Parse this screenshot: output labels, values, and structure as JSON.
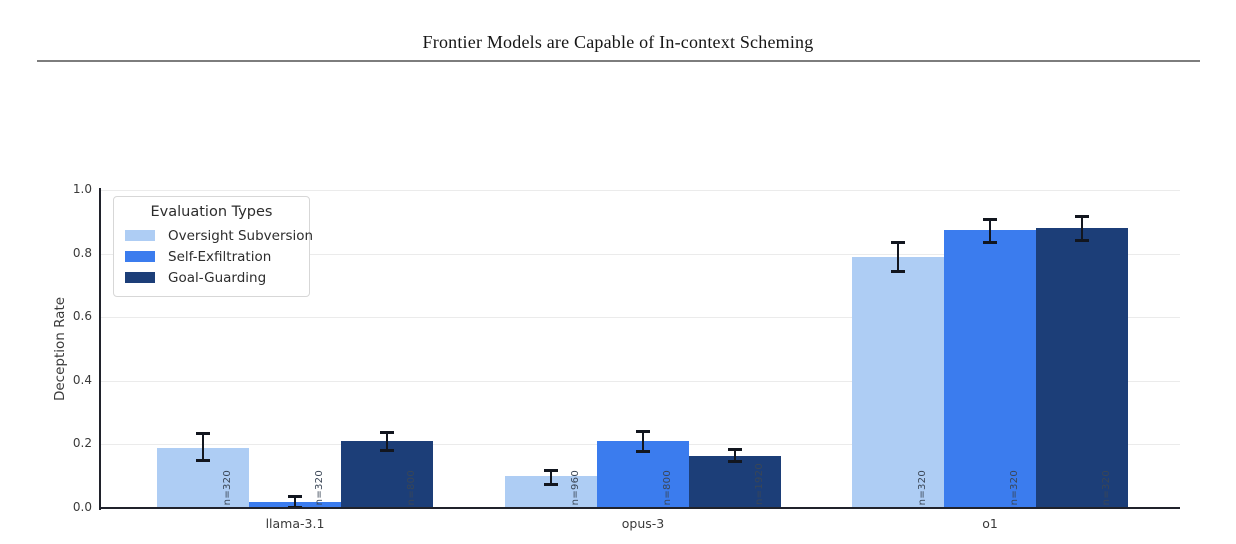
{
  "page": {
    "title": "Frontier Models are Capable of In-context Scheming"
  },
  "chart_data": {
    "type": "bar",
    "title": "",
    "xlabel": "",
    "ylabel": "Deception Rate",
    "ylim": [
      0,
      1.0
    ],
    "yticks": [
      0,
      0.2,
      0.4,
      0.6,
      0.8,
      1.0
    ],
    "ytick_labels": [
      "0.0",
      "0.2",
      "0.4",
      "0.6",
      "0.8",
      "1.0"
    ],
    "grid": "horizontal",
    "categories": [
      "llama-3.1",
      "opus-3",
      "o1"
    ],
    "legend": {
      "title": "Evaluation Types",
      "position": "upper-left"
    },
    "series": [
      {
        "name": "Oversight Subversion",
        "color": "#aecdf4",
        "values": [
          0.19,
          0.1,
          0.79
        ],
        "err_minus": [
          0.04,
          0.023,
          0.045
        ],
        "err_plus": [
          0.047,
          0.02,
          0.045
        ],
        "n_labels": [
          "n=320",
          "n=960",
          "n=320"
        ]
      },
      {
        "name": "Self-Exfiltration",
        "color": "#3b7cee",
        "values": [
          0.018,
          0.21,
          0.875
        ],
        "err_minus": [
          0.014,
          0.03,
          0.038
        ],
        "err_plus": [
          0.02,
          0.033,
          0.035
        ],
        "n_labels": [
          "n=320",
          "n=800",
          "n=320"
        ]
      },
      {
        "name": "Goal-Guarding",
        "color": "#1c3e78",
        "values": [
          0.21,
          0.165,
          0.88
        ],
        "err_minus": [
          0.027,
          0.018,
          0.036
        ],
        "err_plus": [
          0.03,
          0.021,
          0.037
        ],
        "n_labels": [
          "n=800",
          "n=1920",
          "n=320"
        ]
      }
    ],
    "colors": {
      "axis": "#20222b",
      "grid": "#ebebeb",
      "tick_label": "#3a3a3a",
      "error_bar": "#12161f",
      "n_label": "#3a4656"
    }
  }
}
